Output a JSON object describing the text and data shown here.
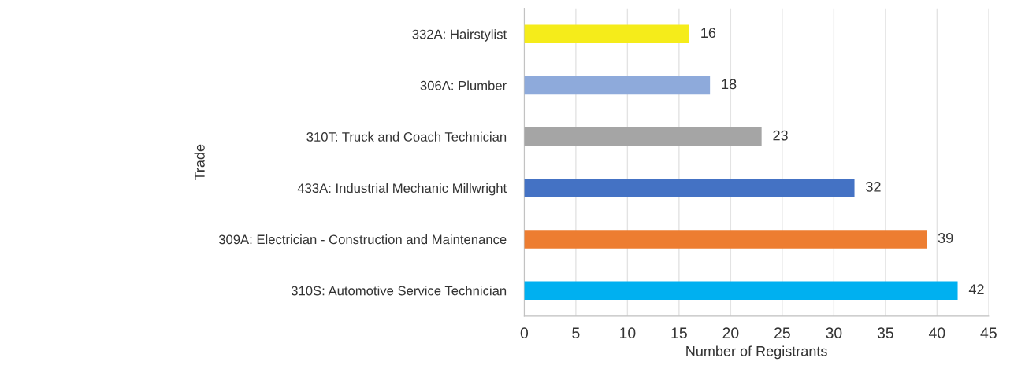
{
  "chart_data": {
    "type": "bar",
    "orientation": "horizontal",
    "categories": [
      "332A: Hairstylist",
      "306A: Plumber",
      "310T: Truck and Coach Technician",
      "433A: Industrial Mechanic Millwright",
      "309A: Electrician - Construction and Maintenance",
      "310S: Automotive Service Technician"
    ],
    "values": [
      16,
      18,
      23,
      32,
      39,
      42
    ],
    "colors": [
      "#f5ec1a",
      "#8eaadb",
      "#a5a5a5",
      "#4472c4",
      "#ed7d31",
      "#00b0f0"
    ],
    "xlabel": "Number of Registrants",
    "ylabel": "Trade",
    "xlim": [
      0,
      45
    ],
    "xticks": [
      0,
      5,
      10,
      15,
      20,
      25,
      30,
      35,
      40,
      45
    ],
    "grid": "x",
    "data_labels": true,
    "legend": false
  }
}
